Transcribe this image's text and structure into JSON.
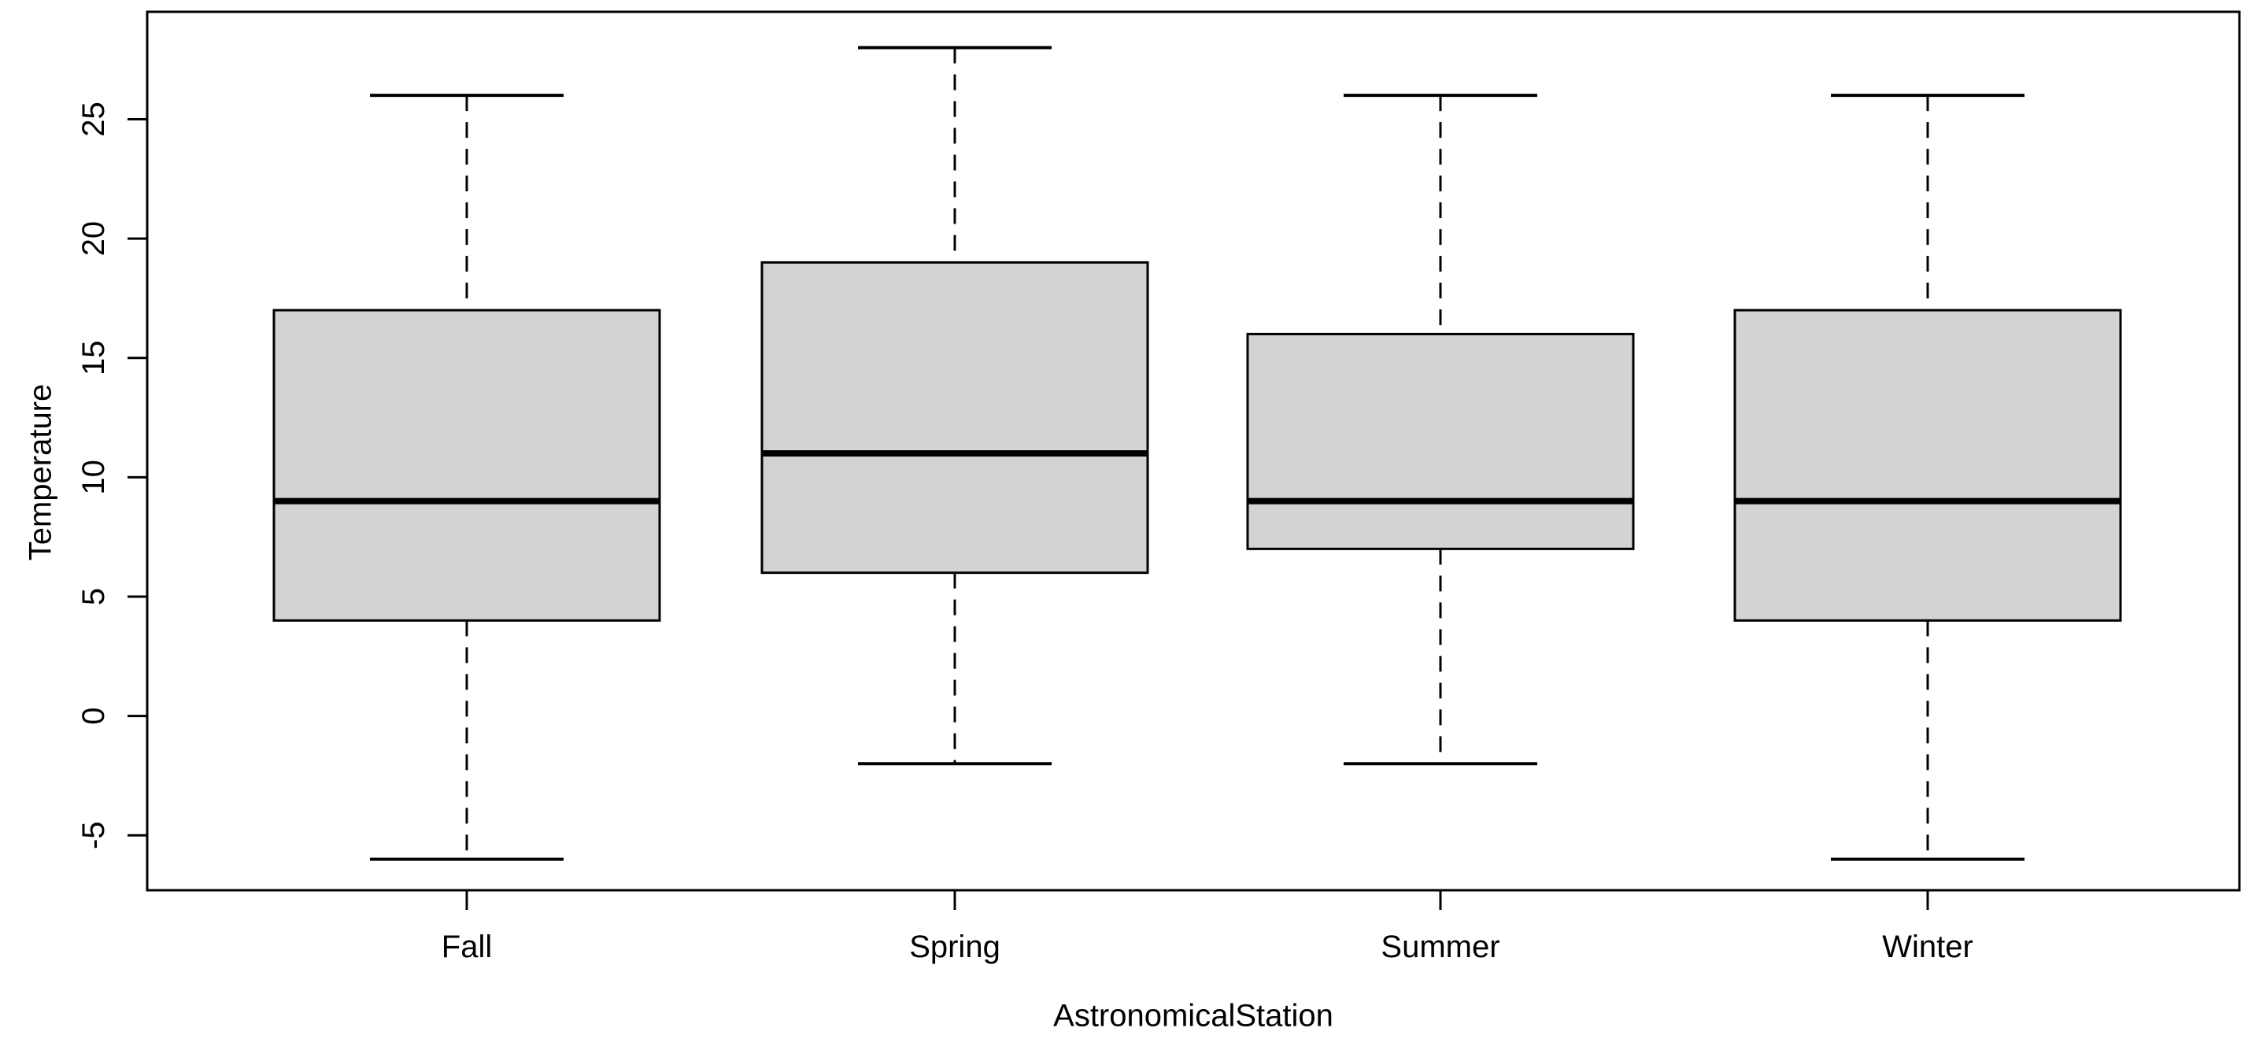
{
  "chart_data": {
    "type": "boxplot",
    "title": "",
    "xlabel": "AstronomicalStation",
    "ylabel": "Temperature",
    "categories": [
      "Fall",
      "Spring",
      "Summer",
      "Winter"
    ],
    "series": [
      {
        "name": "Fall",
        "min": -6,
        "q1": 4,
        "median": 9,
        "q3": 17,
        "max": 26
      },
      {
        "name": "Spring",
        "min": -2,
        "q1": 6,
        "median": 11,
        "q3": 19,
        "max": 28
      },
      {
        "name": "Summer",
        "min": -2,
        "q1": 7,
        "median": 9,
        "q3": 16,
        "max": 26
      },
      {
        "name": "Winter",
        "min": -6,
        "q1": 4,
        "median": 9,
        "q3": 17,
        "max": 26
      }
    ],
    "yticks": [
      -5,
      0,
      5,
      10,
      15,
      20,
      25
    ],
    "ylim": [
      -7.3,
      29.5
    ],
    "grid": false,
    "legend": "none",
    "box_fill": "#D3D3D3",
    "line_color": "#000000",
    "background": "#FFFFFF"
  }
}
